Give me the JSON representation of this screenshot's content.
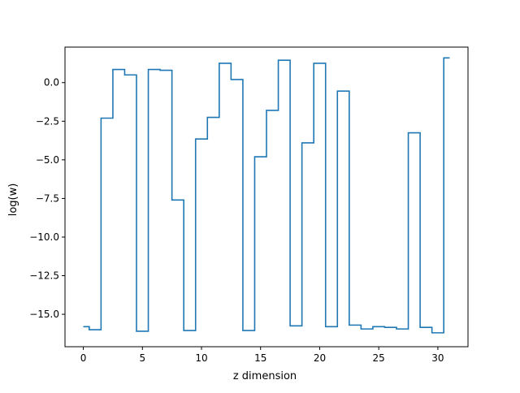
{
  "chart_data": {
    "type": "line",
    "drawstyle": "steps-mid",
    "xlabel": "z dimension",
    "ylabel": "log(w)",
    "xlim": [
      -1.55,
      32.55
    ],
    "ylim": [
      -17.1,
      2.3
    ],
    "x_ticks": [
      0,
      5,
      10,
      15,
      20,
      25,
      30
    ],
    "x_tick_labels": [
      "0",
      "5",
      "10",
      "15",
      "20",
      "25",
      "30"
    ],
    "y_ticks": [
      0.0,
      -2.5,
      -5.0,
      -7.5,
      -10.0,
      -12.5,
      -15.0
    ],
    "y_tick_labels": [
      "0.0",
      "−2.5",
      "−5.0",
      "−7.5",
      "−10.0",
      "−12.5",
      "−15.0"
    ],
    "grid": false,
    "legend": "none",
    "series": [
      {
        "color": "#1f77b4",
        "x": [
          0,
          1,
          2,
          3,
          4,
          5,
          6,
          7,
          8,
          9,
          10,
          11,
          12,
          13,
          14,
          15,
          16,
          17,
          18,
          19,
          20,
          21,
          22,
          23,
          24,
          25,
          26,
          27,
          28,
          29,
          30,
          31
        ],
        "y": [
          -15.8,
          -16.0,
          -2.3,
          0.85,
          0.5,
          -16.1,
          0.85,
          0.8,
          -7.6,
          -16.05,
          -3.65,
          -2.25,
          1.25,
          0.2,
          -16.05,
          -4.8,
          -1.8,
          1.45,
          -15.75,
          -3.9,
          1.25,
          -15.8,
          -0.55,
          -15.7,
          -15.95,
          -15.8,
          -15.85,
          -15.95,
          -3.25,
          -15.85,
          -16.2,
          1.6
        ]
      }
    ]
  }
}
